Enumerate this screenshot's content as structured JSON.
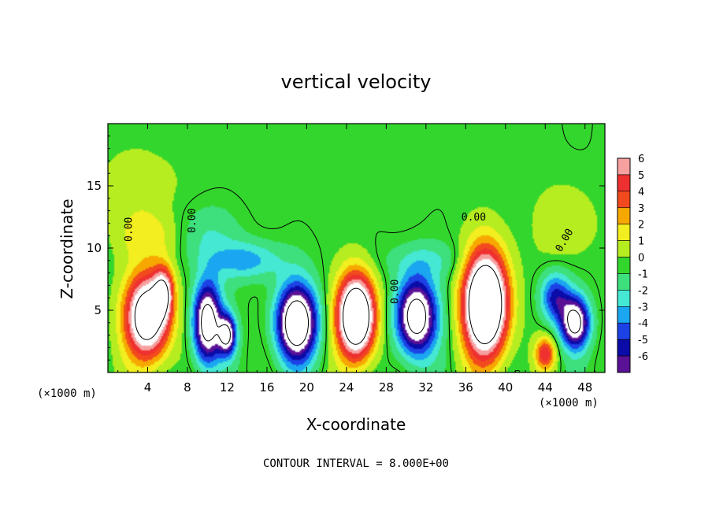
{
  "chart_data": {
    "type": "heatmap",
    "title": "vertical velocity",
    "xlabel": "X-coordinate",
    "ylabel": "Z-coordinate",
    "x_unit_left": "(×1000 m)",
    "x_unit_right": "(×1000 m)",
    "xlim": [
      0,
      50
    ],
    "ylim": [
      0,
      20
    ],
    "x_ticks": [
      4,
      8,
      12,
      16,
      20,
      24,
      28,
      32,
      36,
      40,
      44,
      48
    ],
    "y_ticks": [
      5,
      10,
      15
    ],
    "colorbar": {
      "levels": [
        6,
        5,
        4,
        3,
        2,
        1,
        0,
        -1,
        -2,
        -3,
        -4,
        -5,
        -6
      ],
      "colors": [
        "#f6a0a0",
        "#ee3030",
        "#f24a1e",
        "#f7a800",
        "#f2ee1f",
        "#b6ed20",
        "#33d62c",
        "#3de07d",
        "#45e8d3",
        "#1aa6f0",
        "#1c42e6",
        "#0b0ba8",
        "#5a1196"
      ]
    },
    "contour_label": "0.00",
    "annotation": "CONTOUR INTERVAL = 8.000E+00",
    "cells": [
      {
        "x": 4,
        "z": 4.5,
        "sx": 2.2,
        "sz": 3.4,
        "w": 11
      },
      {
        "x": 5.6,
        "z": 6.5,
        "sx": 1.0,
        "sz": 2.0,
        "w": 6
      },
      {
        "x": 10,
        "z": 4,
        "sx": 1.4,
        "sz": 3.2,
        "w": -10
      },
      {
        "x": 12,
        "z": 3,
        "sx": 0.9,
        "sz": 1.6,
        "w": -8
      },
      {
        "x": 19,
        "z": 4,
        "sx": 2.0,
        "sz": 3.0,
        "w": -11
      },
      {
        "x": 25,
        "z": 4.5,
        "sx": 1.9,
        "sz": 3.3,
        "w": 13
      },
      {
        "x": 31,
        "z": 4.5,
        "sx": 2.0,
        "sz": 3.0,
        "w": -10
      },
      {
        "x": 38,
        "z": 5.5,
        "sx": 2.2,
        "sz": 4.2,
        "w": 14
      },
      {
        "x": 44,
        "z": 1.5,
        "sx": 1.0,
        "sz": 1.3,
        "w": 5
      },
      {
        "x": 45,
        "z": 6,
        "sx": 1.5,
        "sz": 2.0,
        "w": -5
      },
      {
        "x": 47,
        "z": 4,
        "sx": 1.4,
        "sz": 2.0,
        "w": -9
      },
      {
        "x": 14,
        "z": 9,
        "sx": 3.5,
        "sz": 1.5,
        "w": -3
      },
      {
        "x": 10,
        "z": 11,
        "sx": 3.0,
        "sz": 2.5,
        "w": -1.5
      },
      {
        "x": 4,
        "z": 11,
        "sx": 3.0,
        "sz": 2.0,
        "w": 2
      },
      {
        "x": 3,
        "z": 15,
        "sx": 4.0,
        "sz": 3.0,
        "w": 1.2
      },
      {
        "x": 46,
        "z": 12,
        "sx": 3.0,
        "sz": 3.0,
        "w": 1.5
      },
      {
        "x": 32,
        "z": 9,
        "sx": 4.0,
        "sz": 1.5,
        "w": -1.5
      },
      {
        "x": 22,
        "z": 17,
        "sx": 12.0,
        "sz": 4.0,
        "w": 0.4
      }
    ]
  }
}
